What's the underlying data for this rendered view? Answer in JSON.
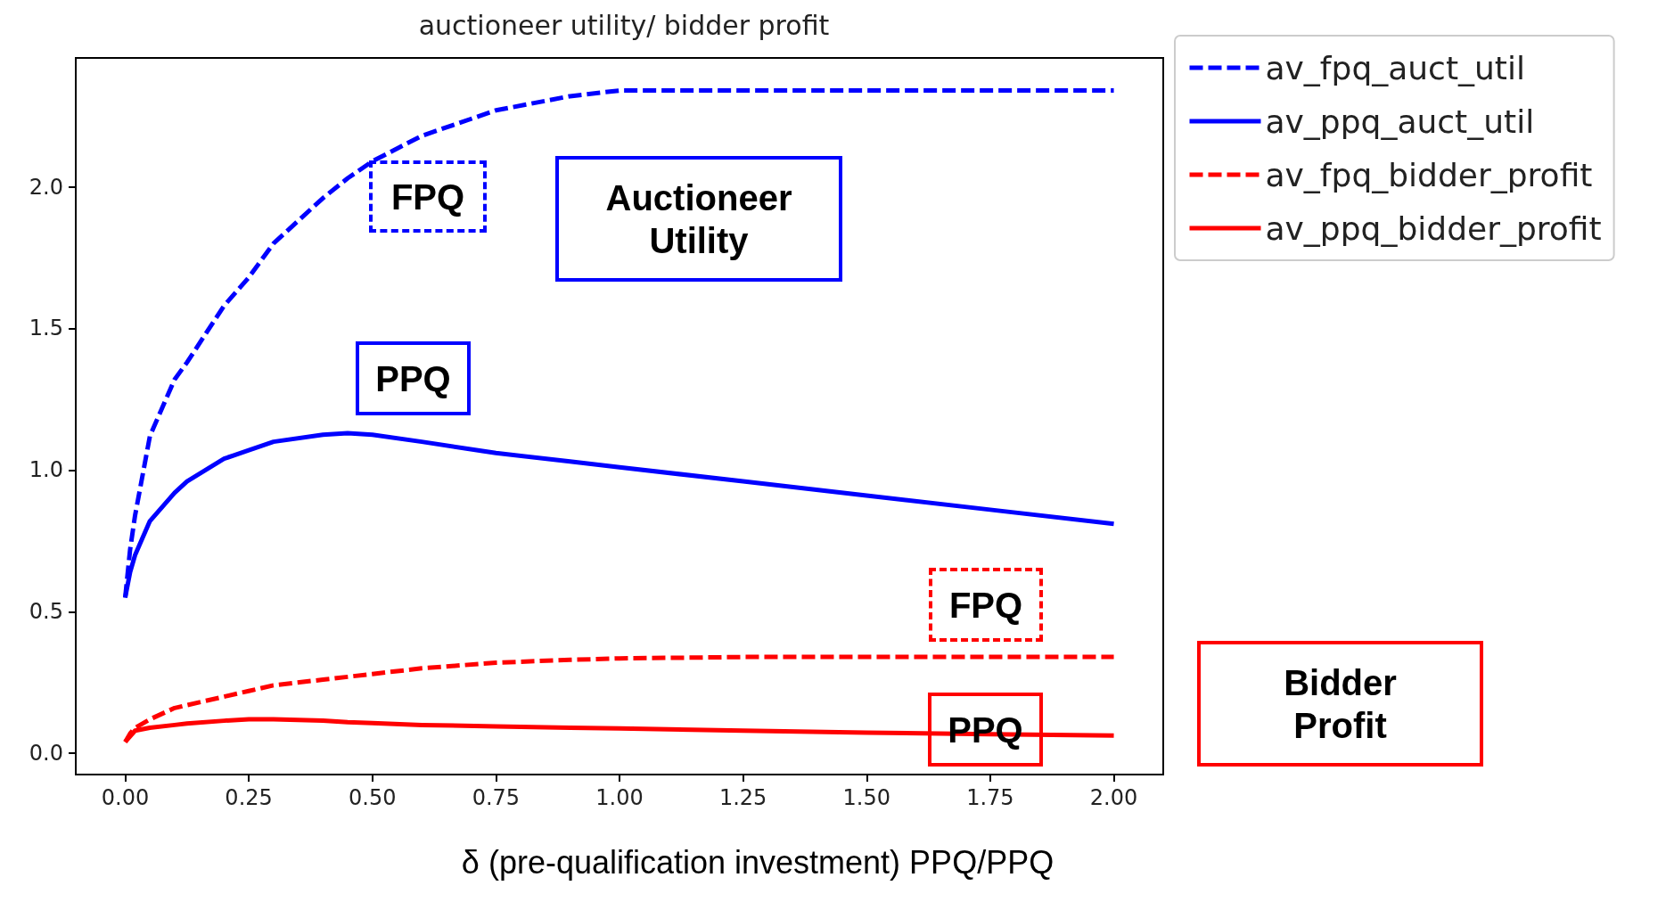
{
  "chart_data": {
    "type": "line",
    "title": "auctioneer utility/ bidder profit",
    "xlabel": "δ (pre-qualification investment) PPQ/PPQ",
    "x": [
      0,
      0.01,
      0.02,
      0.05,
      0.1,
      0.125,
      0.2,
      0.25,
      0.3,
      0.4,
      0.45,
      0.5,
      0.6,
      0.75,
      0.9,
      1.0,
      1.25,
      1.5,
      1.75,
      2.0
    ],
    "series": [
      {
        "name": "av_fpq_auct_util",
        "color": "#0000ff",
        "line_style": "dashed",
        "values": [
          0.55,
          0.72,
          0.84,
          1.12,
          1.32,
          1.38,
          1.58,
          1.68,
          1.8,
          1.96,
          2.03,
          2.09,
          2.18,
          2.27,
          2.32,
          2.34,
          2.34,
          2.34,
          2.34,
          2.34
        ]
      },
      {
        "name": "av_ppq_auct_util",
        "color": "#0000ff",
        "line_style": "solid",
        "values": [
          0.55,
          0.64,
          0.7,
          0.82,
          0.92,
          0.96,
          1.04,
          1.07,
          1.1,
          1.125,
          1.13,
          1.125,
          1.1,
          1.06,
          1.03,
          1.01,
          0.96,
          0.91,
          0.86,
          0.81
        ]
      },
      {
        "name": "av_fpq_bidder_profit",
        "color": "#ff0000",
        "line_style": "dashed",
        "values": [
          0.04,
          0.07,
          0.09,
          0.12,
          0.16,
          0.17,
          0.2,
          0.22,
          0.24,
          0.26,
          0.27,
          0.28,
          0.3,
          0.32,
          0.33,
          0.335,
          0.34,
          0.34,
          0.34,
          0.34
        ]
      },
      {
        "name": "av_ppq_bidder_profit",
        "color": "#ff0000",
        "line_style": "solid",
        "values": [
          0.04,
          0.06,
          0.08,
          0.09,
          0.1,
          0.105,
          0.115,
          0.12,
          0.12,
          0.115,
          0.11,
          0.107,
          0.1,
          0.095,
          0.09,
          0.088,
          0.08,
          0.073,
          0.067,
          0.063
        ]
      }
    ],
    "xlim": [
      -0.1,
      2.1
    ],
    "ylim": [
      -0.075,
      2.455
    ],
    "xticks": [
      {
        "value": 0,
        "label": "0.00"
      },
      {
        "value": 0.25,
        "label": "0.25"
      },
      {
        "value": 0.5,
        "label": "0.50"
      },
      {
        "value": 0.75,
        "label": "0.75"
      },
      {
        "value": 1,
        "label": "1.00"
      },
      {
        "value": 1.25,
        "label": "1.25"
      },
      {
        "value": 1.5,
        "label": "1.50"
      },
      {
        "value": 1.75,
        "label": "1.75"
      },
      {
        "value": 2,
        "label": "2.00"
      }
    ],
    "yticks": [
      {
        "value": 0,
        "label": "0.0"
      },
      0.5,
      {
        "value": 1,
        "label": "1.0"
      },
      1.5,
      {
        "value": 2,
        "label": "2.0"
      }
    ],
    "grid": false,
    "legend": "top right",
    "marker": "none",
    "annotations": [
      "FPQ",
      "Auctioneer Utility",
      "PPQ",
      "FPQ",
      "PPQ",
      "Bidder Profit"
    ]
  }
}
